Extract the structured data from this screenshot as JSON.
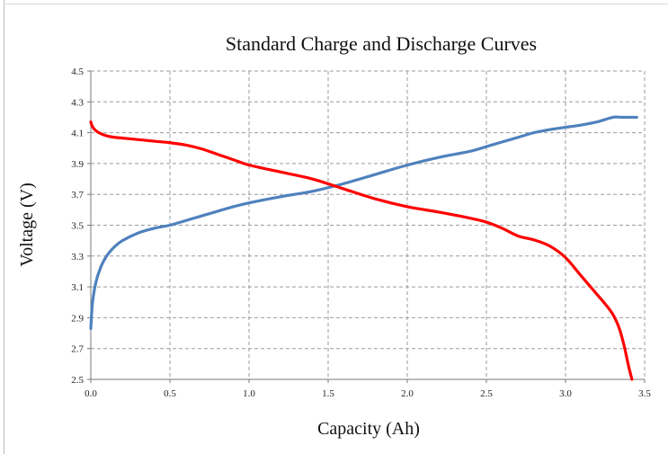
{
  "chart_data": {
    "type": "line",
    "title": "Standard Charge and Discharge Curves",
    "xlabel": "Capacity (Ah)",
    "ylabel": "Voltage (V)",
    "xlim": [
      0.0,
      3.5
    ],
    "ylim": [
      2.5,
      4.5
    ],
    "x_ticks": [
      "0.0",
      "0.5",
      "1.0",
      "1.5",
      "2.0",
      "2.5",
      "3.0",
      "3.5"
    ],
    "y_ticks": [
      "2.5",
      "2.7",
      "2.9",
      "3.1",
      "3.3",
      "3.5",
      "3.7",
      "3.9",
      "4.1",
      "4.3",
      "4.5"
    ],
    "grid": true,
    "legend": "none",
    "series": [
      {
        "color": "#4f81bd",
        "x": [
          0.0,
          0.01,
          0.03,
          0.06,
          0.1,
          0.15,
          0.2,
          0.3,
          0.4,
          0.5,
          0.6,
          0.7,
          0.8,
          0.9,
          1.0,
          1.2,
          1.4,
          1.6,
          1.8,
          2.0,
          2.2,
          2.4,
          2.5,
          2.6,
          2.7,
          2.8,
          2.9,
          3.0,
          3.1,
          3.2,
          3.3,
          3.35,
          3.45
        ],
        "y": [
          2.83,
          2.99,
          3.12,
          3.22,
          3.3,
          3.36,
          3.4,
          3.45,
          3.48,
          3.5,
          3.53,
          3.56,
          3.59,
          3.62,
          3.645,
          3.685,
          3.72,
          3.77,
          3.83,
          3.89,
          3.94,
          3.98,
          4.01,
          4.04,
          4.07,
          4.1,
          4.12,
          4.135,
          4.15,
          4.17,
          4.2,
          4.2,
          4.2
        ]
      },
      {
        "color": "#ff0000",
        "x": [
          0.0,
          0.01,
          0.03,
          0.06,
          0.1,
          0.15,
          0.2,
          0.3,
          0.4,
          0.5,
          0.6,
          0.7,
          0.8,
          0.9,
          1.0,
          1.2,
          1.4,
          1.6,
          1.8,
          2.0,
          2.2,
          2.4,
          2.5,
          2.6,
          2.7,
          2.8,
          2.9,
          3.0,
          3.1,
          3.2,
          3.25,
          3.3,
          3.34,
          3.37,
          3.4,
          3.42
        ],
        "y": [
          4.17,
          4.14,
          4.115,
          4.095,
          4.08,
          4.07,
          4.065,
          4.055,
          4.045,
          4.035,
          4.02,
          3.995,
          3.96,
          3.925,
          3.89,
          3.845,
          3.8,
          3.735,
          3.67,
          3.62,
          3.585,
          3.545,
          3.52,
          3.48,
          3.43,
          3.405,
          3.365,
          3.29,
          3.17,
          3.05,
          2.99,
          2.92,
          2.83,
          2.72,
          2.58,
          2.5
        ]
      }
    ]
  }
}
